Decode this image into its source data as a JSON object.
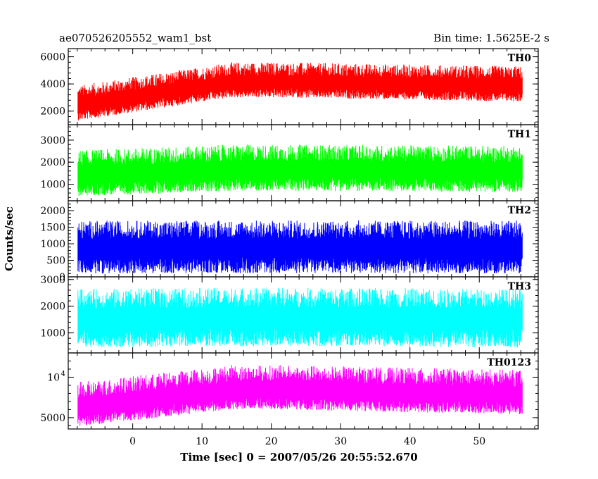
{
  "chart_data": {
    "type": "line",
    "title_left": "ae070526205552_wam1_bst",
    "title_right": "Bin time: 1.5625E-2 s",
    "xlabel": "Time [sec] 0 = 2007/05/26 20:55:52.670",
    "ylabel": "Counts/sec",
    "xlim": [
      -9.3,
      58.5
    ],
    "x_ticks": [
      0,
      10,
      20,
      30,
      40,
      50
    ],
    "x_range_data": [
      -7.9,
      56.2
    ],
    "grid": false,
    "series": [
      {
        "name": "TH0",
        "color": "#ff0000",
        "ylim": [
          1000,
          6600
        ],
        "y_ticks": [
          {
            "v": 2000,
            "label": "2000"
          },
          {
            "v": 4000,
            "label": "4000"
          },
          {
            "v": 6000,
            "label": "6000"
          }
        ],
        "baseline_start": 2400,
        "baseline_peak": 4100,
        "baseline_end": 3800,
        "noise_low": 1100,
        "noise_high": 1500
      },
      {
        "name": "TH1",
        "color": "#00ff00",
        "ylim": [
          250,
          3700
        ],
        "y_ticks": [
          {
            "v": 1000,
            "label": "1000"
          },
          {
            "v": 2000,
            "label": "2000"
          },
          {
            "v": 3000,
            "label": "3000"
          }
        ],
        "baseline_start": 1400,
        "baseline_peak": 1650,
        "baseline_end": 1600,
        "noise_low": 950,
        "noise_high": 1150
      },
      {
        "name": "TH2",
        "color": "#0000ff",
        "ylim": [
          0,
          2300
        ],
        "y_ticks": [
          {
            "v": 0,
            "label": "0"
          },
          {
            "v": 500,
            "label": "500"
          },
          {
            "v": 1000,
            "label": "1000"
          },
          {
            "v": 1500,
            "label": "1500"
          },
          {
            "v": 2000,
            "label": "2000"
          }
        ],
        "baseline_start": 850,
        "baseline_peak": 860,
        "baseline_end": 850,
        "noise_low": 750,
        "noise_high": 850
      },
      {
        "name": "TH3",
        "color": "#00ffff",
        "ylim": [
          250,
          3100
        ],
        "y_ticks": [
          {
            "v": 1000,
            "label": "1000"
          },
          {
            "v": 2000,
            "label": "2000"
          },
          {
            "v": 3000,
            "label": "3000"
          }
        ],
        "baseline_start": 1500,
        "baseline_peak": 1550,
        "baseline_end": 1500,
        "noise_low": 1050,
        "noise_high": 1150
      },
      {
        "name": "TH0123",
        "color": "#ff00ff",
        "ylim": [
          3600,
          13000
        ],
        "y_ticks": [
          {
            "v": 5000,
            "label": "5000"
          },
          {
            "v": 10000,
            "label": "10",
            "sup": "4"
          }
        ],
        "baseline_start": 6200,
        "baseline_peak": 8300,
        "baseline_end": 7700,
        "noise_low": 2300,
        "noise_high": 3200
      }
    ]
  }
}
